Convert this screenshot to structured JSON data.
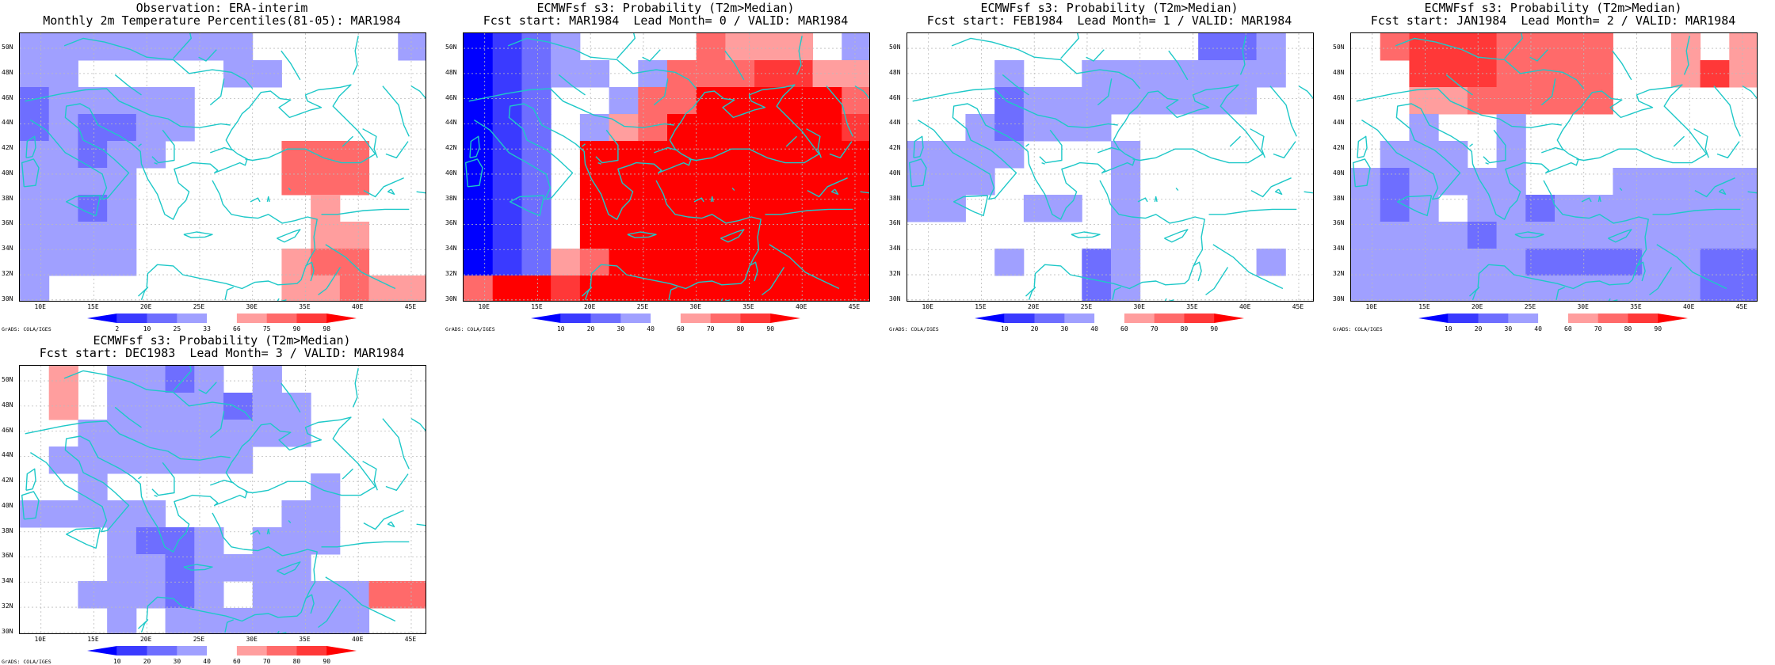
{
  "panels": [
    {
      "title1": "Observation: ERA-interim",
      "title2": "Monthly 2m Temperature Percentiles(81-05): MAR1984",
      "colorbar_labels": [
        "2",
        "10",
        "25",
        "33",
        "66",
        "75",
        "90",
        "98"
      ]
    },
    {
      "title1": "ECMWFsf s3: Probability (T2m>Median)",
      "title2": "Fcst start: MAR1984  Lead Month= 0 / VALID: MAR1984",
      "colorbar_labels": [
        "10",
        "20",
        "30",
        "40",
        "60",
        "70",
        "80",
        "90"
      ]
    },
    {
      "title1": "ECMWFsf s3: Probability (T2m>Median)",
      "title2": "Fcst start: FEB1984  Lead Month= 1 / VALID: MAR1984",
      "colorbar_labels": [
        "10",
        "20",
        "30",
        "40",
        "60",
        "70",
        "80",
        "90"
      ]
    },
    {
      "title1": "ECMWFsf s3: Probability (T2m>Median)",
      "title2": "Fcst start: JAN1984  Lead Month= 2 / VALID: MAR1984",
      "colorbar_labels": [
        "10",
        "20",
        "30",
        "40",
        "60",
        "70",
        "80",
        "90"
      ]
    },
    {
      "title1": "ECMWFsf s3: Probability (T2m>Median)",
      "title2": "Fcst start: DEC1983  Lead Month= 3 / VALID: MAR1984",
      "colorbar_labels": [
        "10",
        "20",
        "30",
        "40",
        "60",
        "70",
        "80",
        "90"
      ]
    }
  ],
  "lat_labels": [
    "50N",
    "48N",
    "46N",
    "44N",
    "42N",
    "40N",
    "38N",
    "36N",
    "34N",
    "32N",
    "30N"
  ],
  "lon_labels": [
    "10E",
    "15E",
    "20E",
    "25E",
    "30E",
    "35E",
    "40E",
    "45E"
  ],
  "footer": "GrADS: COLA/IGES",
  "colors": {
    "coast": "#1ec8c8",
    "grid": "#bbbbbb"
  },
  "palette": [
    "#0000ff",
    "#3a3aff",
    "#6e6eff",
    "#a0a0ff",
    "#ffffff",
    "#ff9e9e",
    "#ff6a6a",
    "#ff3838",
    "#ff0000"
  ]
}
